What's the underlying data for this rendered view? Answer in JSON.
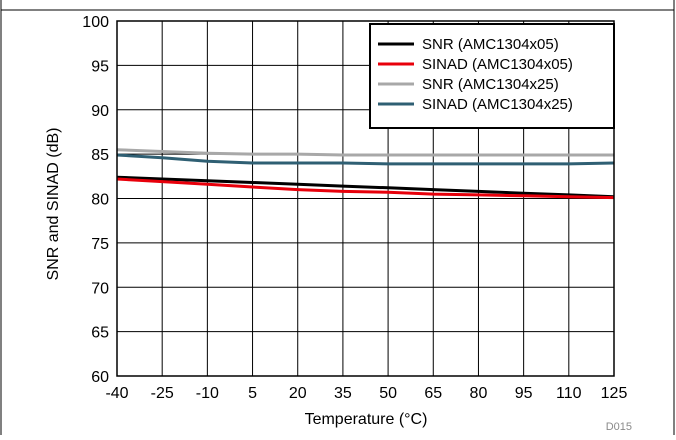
{
  "chart_data": {
    "type": "line",
    "title": "",
    "xlabel": "Temperature (°C)",
    "ylabel": "SNR and SINAD (dB)",
    "xlim": [
      -40,
      125
    ],
    "ylim": [
      60,
      100
    ],
    "x_ticks": [
      -40,
      -25,
      -10,
      5,
      20,
      35,
      50,
      65,
      80,
      95,
      110,
      125
    ],
    "y_ticks": [
      60,
      65,
      70,
      75,
      80,
      85,
      90,
      95,
      100
    ],
    "grid": true,
    "legend_position": "top-right",
    "x": [
      -40,
      -25,
      -10,
      5,
      20,
      35,
      50,
      65,
      80,
      95,
      110,
      125
    ],
    "series": [
      {
        "name": "SNR (AMC1304x05)",
        "color": "#000000",
        "values": [
          82.4,
          82.2,
          82.0,
          81.8,
          81.6,
          81.4,
          81.2,
          81.0,
          80.8,
          80.6,
          80.4,
          80.2
        ]
      },
      {
        "name": "SINAD (AMC1304x05)",
        "color": "#e8000b",
        "values": [
          82.2,
          81.9,
          81.6,
          81.3,
          81.0,
          80.8,
          80.7,
          80.5,
          80.4,
          80.3,
          80.2,
          80.1
        ]
      },
      {
        "name": "SNR (AMC1304x25)",
        "color": "#a8a8a8",
        "values": [
          85.5,
          85.3,
          85.1,
          85.0,
          85.0,
          84.9,
          84.9,
          84.9,
          84.9,
          84.9,
          84.9,
          84.9
        ]
      },
      {
        "name": "SINAD (AMC1304x25)",
        "color": "#2f5f73",
        "values": [
          84.9,
          84.6,
          84.2,
          84.0,
          84.0,
          84.0,
          83.9,
          83.9,
          83.9,
          83.9,
          83.9,
          84.0
        ]
      }
    ],
    "figure_code": "D015"
  }
}
